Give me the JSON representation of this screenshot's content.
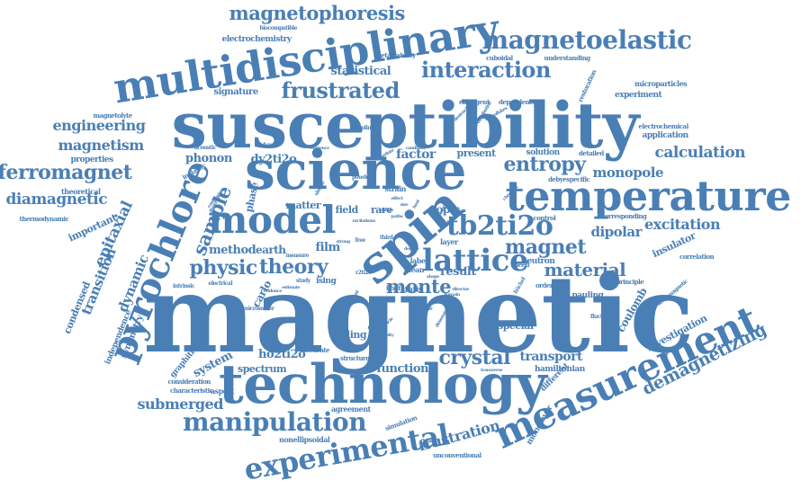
{
  "cloud": {
    "color": "#4a7fb5",
    "words": [
      {
        "text": "magnetic",
        "weight": 100
      },
      {
        "text": "susceptibility",
        "weight": 64
      },
      {
        "text": "technology",
        "weight": 54
      },
      {
        "text": "science",
        "weight": 50
      },
      {
        "text": "multidisciplinary",
        "weight": 44
      },
      {
        "text": "temperature",
        "weight": 42
      },
      {
        "text": "measurement",
        "weight": 40
      },
      {
        "text": "pyrochlore",
        "weight": 38
      },
      {
        "text": "spin",
        "weight": 42
      },
      {
        "text": "model",
        "weight": 36
      },
      {
        "text": "lattice",
        "weight": 30
      },
      {
        "text": "experimental",
        "weight": 30
      },
      {
        "text": "tb2ti2o",
        "weight": 28
      },
      {
        "text": "manipulation",
        "weight": 26
      },
      {
        "text": "magnetoelastic",
        "weight": 24
      },
      {
        "text": "frustrated",
        "weight": 22
      },
      {
        "text": "interaction",
        "weight": 22
      },
      {
        "text": "magnetophoresis",
        "weight": 20
      },
      {
        "text": "ferromagnet",
        "weight": 20
      },
      {
        "text": "sample",
        "weight": 20
      },
      {
        "text": "entropy",
        "weight": 20
      },
      {
        "text": "magnet",
        "weight": 20
      },
      {
        "text": "physic",
        "weight": 20
      },
      {
        "text": "theory",
        "weight": 20
      },
      {
        "text": "monte",
        "weight": 20
      },
      {
        "text": "crystal",
        "weight": 20
      },
      {
        "text": "material",
        "weight": 18
      },
      {
        "text": "demagnetizing",
        "weight": 18
      },
      {
        "text": "frustration",
        "weight": 16
      },
      {
        "text": "diamagnetic",
        "weight": 16
      },
      {
        "text": "calculation",
        "weight": 16
      },
      {
        "text": "excitation",
        "weight": 16
      },
      {
        "text": "submerged",
        "weight": 15
      },
      {
        "text": "engineering",
        "weight": 15
      },
      {
        "text": "magnetism",
        "weight": 15
      },
      {
        "text": "epitaxial",
        "weight": 15
      },
      {
        "text": "dynamic",
        "weight": 14
      },
      {
        "text": "transition",
        "weight": 14
      },
      {
        "text": "monopole",
        "weight": 14
      },
      {
        "text": "dipolar",
        "weight": 14
      },
      {
        "text": "transport",
        "weight": 14
      },
      {
        "text": "function",
        "weight": 13
      },
      {
        "text": "statistical",
        "weight": 13
      },
      {
        "text": "factor",
        "weight": 13
      },
      {
        "text": "system",
        "weight": 13
      },
      {
        "text": "ho2ti2o",
        "weight": 12
      },
      {
        "text": "phonon",
        "weight": 12
      },
      {
        "text": "dy2ti2o",
        "weight": 12
      },
      {
        "text": "method",
        "weight": 12
      },
      {
        "text": "film",
        "weight": 12
      },
      {
        "text": "result",
        "weight": 12
      },
      {
        "text": "topic",
        "weight": 12
      },
      {
        "text": "coulomb",
        "weight": 11
      },
      {
        "text": "investigation",
        "weight": 11
      },
      {
        "text": "insulator",
        "weight": 11
      },
      {
        "text": "condensed",
        "weight": 11
      },
      {
        "text": "important",
        "weight": 11
      },
      {
        "text": "carlo",
        "weight": 11
      },
      {
        "text": "phase",
        "weight": 11
      },
      {
        "text": "earth",
        "weight": 11
      },
      {
        "text": "spectrum",
        "weight": 10
      },
      {
        "text": "present",
        "weight": 10
      },
      {
        "text": "solution",
        "weight": 9
      },
      {
        "text": "scaling",
        "weight": 10
      },
      {
        "text": "special",
        "weight": 10
      },
      {
        "text": "rare",
        "weight": 10
      },
      {
        "text": "field",
        "weight": 10
      },
      {
        "text": "matter",
        "weight": 10
      },
      {
        "text": "symmetry",
        "weight": 9
      },
      {
        "text": "independence",
        "weight": 9
      },
      {
        "text": "signature",
        "weight": 10
      },
      {
        "text": "electrochemistry",
        "weight": 9
      },
      {
        "text": "graphitic",
        "weight": 9
      },
      {
        "text": "properties",
        "weight": 9
      },
      {
        "text": "theoretical",
        "weight": 8
      },
      {
        "text": "pauling",
        "weight": 9
      },
      {
        "text": "hamiltonian",
        "weight": 9
      },
      {
        "text": "neutron",
        "weight": 9
      },
      {
        "text": "experiment",
        "weight": 9
      },
      {
        "text": "application",
        "weight": 9
      },
      {
        "text": "different",
        "weight": 9
      },
      {
        "text": "monolayer",
        "weight": 9
      },
      {
        "text": "ising",
        "weight": 9
      },
      {
        "text": "state",
        "weight": 9
      },
      {
        "text": "mean",
        "weight": 8
      },
      {
        "text": "layer",
        "weight": 8
      },
      {
        "text": "label",
        "weight": 8
      },
      {
        "text": "aspect",
        "weight": 8
      },
      {
        "text": "agreement",
        "weight": 8
      },
      {
        "text": "nonellipsoidal",
        "weight": 8
      },
      {
        "text": "unconventional",
        "weight": 7
      },
      {
        "text": "simulation",
        "weight": 7
      },
      {
        "text": "microparticles",
        "weight": 8
      },
      {
        "text": "electrochemical",
        "weight": 7
      },
      {
        "text": "restoration",
        "weight": 7
      },
      {
        "text": "emergent",
        "weight": 7
      },
      {
        "text": "dependence",
        "weight": 7
      },
      {
        "text": "metastability",
        "weight": 7
      },
      {
        "text": "cuboidal",
        "weight": 7
      },
      {
        "text": "understanding",
        "weight": 7
      },
      {
        "text": "biocompatible",
        "weight": 6
      },
      {
        "text": "magnetolyte",
        "weight": 7
      },
      {
        "text": "thermodynamic",
        "weight": 7
      },
      {
        "text": "inelastic",
        "weight": 7
      },
      {
        "text": "acoustic",
        "weight": 6
      },
      {
        "text": "correlation",
        "weight": 7
      },
      {
        "text": "corresponding",
        "weight": 7
      },
      {
        "text": "control",
        "weight": 7
      },
      {
        "text": "rheed",
        "weight": 7
      },
      {
        "text": "debyespecific",
        "weight": 7
      },
      {
        "text": "detailed",
        "weight": 7
      },
      {
        "text": "hückel",
        "weight": 6
      },
      {
        "text": "ordering",
        "weight": 7
      },
      {
        "text": "principle",
        "weight": 7
      },
      {
        "text": "lihof",
        "weight": 7
      },
      {
        "text": "mode",
        "weight": 6
      },
      {
        "text": "fluctuation",
        "weight": 6
      },
      {
        "text": "ferromagnetic",
        "weight": 6
      },
      {
        "text": "structure",
        "weight": 7
      },
      {
        "text": "accurate",
        "weight": 7
      },
      {
        "text": "characteristic",
        "weight": 7
      },
      {
        "text": "consideration",
        "weight": 7
      },
      {
        "text": "intrinsic",
        "weight": 6
      },
      {
        "text": "electrical",
        "weight": 6
      },
      {
        "text": "micrometer",
        "weight": 6
      },
      {
        "text": "study",
        "weight": 6
      },
      {
        "text": "r2ti2o",
        "weight": 6
      },
      {
        "text": "third",
        "weight": 6
      },
      {
        "text": "free",
        "weight": 6
      },
      {
        "text": "measure",
        "weight": 6
      },
      {
        "text": "strong",
        "weight": 5
      },
      {
        "text": "strain",
        "weight": 8
      },
      {
        "text": "coupling",
        "weight": 6
      },
      {
        "text": "behavior",
        "weight": 6
      },
      {
        "text": "recent",
        "weight": 5
      },
      {
        "text": "single",
        "weight": 6
      },
      {
        "text": "powder",
        "weight": 6
      },
      {
        "text": "existence",
        "weight": 5
      },
      {
        "text": "candidate",
        "weight": 5
      },
      {
        "text": "distribution",
        "weight": 5
      },
      {
        "text": "director",
        "weight": 5
      },
      {
        "text": "domain",
        "weight": 5
      },
      {
        "text": "dimensions",
        "weight": 5
      },
      {
        "text": "symmetries",
        "weight": 6
      },
      {
        "text": "formula",
        "weight": 5
      },
      {
        "text": "particle",
        "weight": 5
      },
      {
        "text": "transverse",
        "weight": 5
      },
      {
        "text": "shape",
        "weight": 5
      },
      {
        "text": "heat",
        "weight": 5
      },
      {
        "text": "size",
        "weight": 5
      },
      {
        "text": "effect",
        "weight": 5
      },
      {
        "text": "paths",
        "weight": 5
      },
      {
        "text": "degree",
        "weight": 5
      },
      {
        "text": "evidence",
        "weight": 5
      },
      {
        "text": "estimate",
        "weight": 5
      },
      {
        "text": "microflakes",
        "weight": 5
      },
      {
        "text": "destructive",
        "weight": 5
      },
      {
        "text": "freedom",
        "weight": 5
      },
      {
        "text": "comparison",
        "weight": 5
      },
      {
        "text": "dispersion",
        "weight": 5
      },
      {
        "text": "density",
        "weight": 5
      },
      {
        "text": "range",
        "weight": 5
      },
      {
        "text": "suggest",
        "weight": 5
      },
      {
        "text": "chemical",
        "weight": 5
      },
      {
        "text": "potential",
        "weight": 5
      },
      {
        "text": "excitations",
        "weight": 5
      }
    ]
  }
}
